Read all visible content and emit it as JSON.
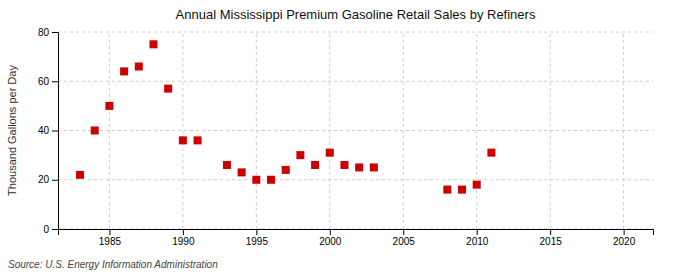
{
  "chart_data": {
    "type": "scatter",
    "title": "Annual Mississippi Premium Gasoline Retail Sales by Refiners",
    "ylabel": "Thousand Gallons per Day",
    "annotations": [
      "Source: U.S. Energy Information Administration"
    ],
    "x": [
      1983,
      1984,
      1985,
      1986,
      1987,
      1988,
      1989,
      1990,
      1991,
      1993,
      1994,
      1995,
      1996,
      1997,
      1998,
      1999,
      2000,
      2001,
      2002,
      2003,
      2008,
      2009,
      2010,
      2011
    ],
    "values": [
      22,
      40,
      50,
      64,
      66,
      75,
      57,
      36,
      36,
      26,
      23,
      20,
      20,
      24,
      30,
      26,
      31,
      26,
      25,
      25,
      16,
      16,
      18,
      31
    ],
    "color": "#cc0000",
    "marker": "square",
    "xlim": [
      1981.5,
      2022
    ],
    "ylim": [
      0,
      80
    ],
    "xticks": [
      1985,
      1990,
      1995,
      2000,
      2005,
      2010,
      2015,
      2020
    ],
    "yticks": [
      0,
      20,
      40,
      60,
      80
    ],
    "grid": true
  }
}
